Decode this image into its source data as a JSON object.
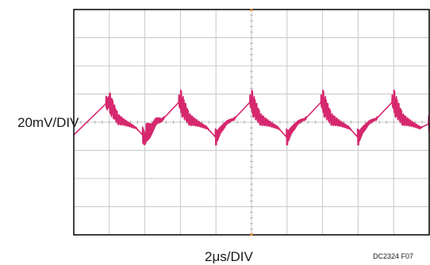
{
  "chart_data": {
    "type": "line",
    "title": "",
    "xlabel": "2μs/DIV",
    "ylabel": "20mV/DIV",
    "figure_id": "DC2324 F07",
    "grid": true,
    "grid_divisions": {
      "x": 10,
      "y": 8
    },
    "xlim": [
      0,
      10
    ],
    "ylim": [
      -4,
      4
    ],
    "line_color": "#d6286e",
    "grid_color": "#c8c8c8",
    "frame_color": "#000000",
    "series": [
      {
        "values_description_free": true,
        "x": [
          0,
          0.9,
          1.0,
          1.25,
          1.5,
          1.75,
          2.0,
          2.3,
          2.5,
          2.95,
          3.0,
          3.25,
          3.5,
          3.75,
          4.0,
          4.3,
          4.5,
          4.95,
          5.0,
          5.25,
          5.5,
          5.75,
          6.0,
          6.3,
          6.5,
          6.95,
          7.0,
          7.25,
          7.5,
          7.75,
          8.0,
          8.3,
          8.5,
          8.95,
          9.0,
          9.25,
          9.5,
          9.75,
          10.0
        ],
        "values": [
          -0.45,
          0.65,
          0.7,
          0.1,
          -0.05,
          -0.2,
          -0.55,
          0.0,
          0.1,
          0.7,
          0.72,
          0.1,
          -0.05,
          -0.2,
          -0.55,
          0.0,
          0.1,
          0.7,
          0.72,
          0.1,
          -0.05,
          -0.2,
          -0.55,
          0.0,
          0.1,
          0.7,
          0.72,
          0.1,
          -0.05,
          -0.2,
          -0.55,
          0.0,
          0.1,
          0.7,
          0.72,
          0.1,
          -0.05,
          -0.2,
          -0.05
        ]
      }
    ]
  }
}
